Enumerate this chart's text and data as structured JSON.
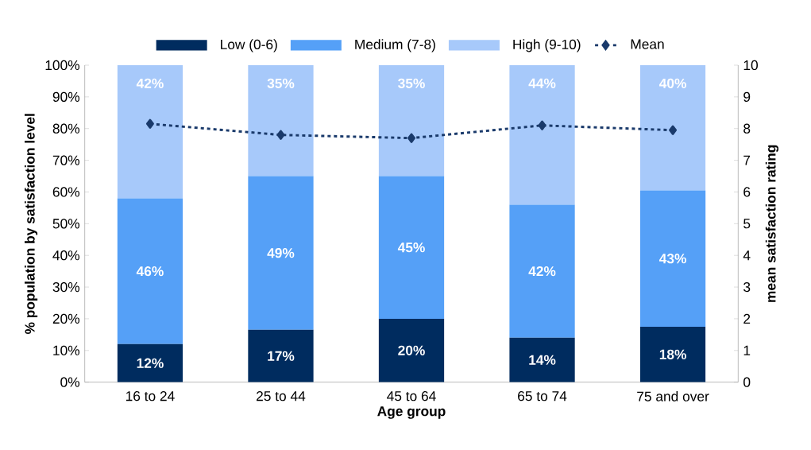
{
  "chart_data": {
    "type": "bar",
    "stacked": true,
    "xlabel": "Age group",
    "ylabel": "% population by satisfaction level",
    "y2label": "mean satisfaction rating",
    "categories": [
      "16 to 24",
      "25 to 44",
      "45 to 64",
      "65 to 74",
      "75 and over"
    ],
    "series": [
      {
        "name": "Low (0-6)",
        "color": "#002c5f",
        "values": [
          12,
          16.5,
          20,
          14,
          17.5
        ],
        "value_labels": [
          "12%",
          "17%",
          "20%",
          "14%",
          "18%"
        ]
      },
      {
        "name": "Medium (7-8)",
        "color": "#55a0f7",
        "values": [
          46,
          48.5,
          45,
          42,
          43
        ],
        "value_labels": [
          "46%",
          "49%",
          "45%",
          "42%",
          "43%"
        ]
      },
      {
        "name": "High (9-10)",
        "color": "#a7c9fa",
        "values": [
          42,
          35,
          35,
          44,
          39.5
        ],
        "value_labels": [
          "42%",
          "35%",
          "35%",
          "44%",
          "40%"
        ]
      },
      {
        "name": "Mean",
        "type": "line",
        "axis": "y2",
        "color": "#1a3a6b",
        "marker": "diamond",
        "line_style": "dashed",
        "values": [
          8.15,
          7.8,
          7.7,
          8.1,
          7.95
        ]
      }
    ],
    "ylim": [
      0,
      100
    ],
    "yticks": [
      {
        "value": 0,
        "label": "0%"
      },
      {
        "value": 10,
        "label": "10%"
      },
      {
        "value": 20,
        "label": "20%"
      },
      {
        "value": 30,
        "label": "30%"
      },
      {
        "value": 40,
        "label": "40%"
      },
      {
        "value": 50,
        "label": "50%"
      },
      {
        "value": 60,
        "label": "60%"
      },
      {
        "value": 70,
        "label": "70%"
      },
      {
        "value": 80,
        "label": "80%"
      },
      {
        "value": 90,
        "label": "90%"
      },
      {
        "value": 100,
        "label": "100%"
      }
    ],
    "y2lim": [
      0,
      10
    ],
    "y2ticks": [
      0,
      1,
      2,
      3,
      4,
      5,
      6,
      7,
      8,
      9,
      10
    ],
    "legend": "top",
    "grid": false
  }
}
